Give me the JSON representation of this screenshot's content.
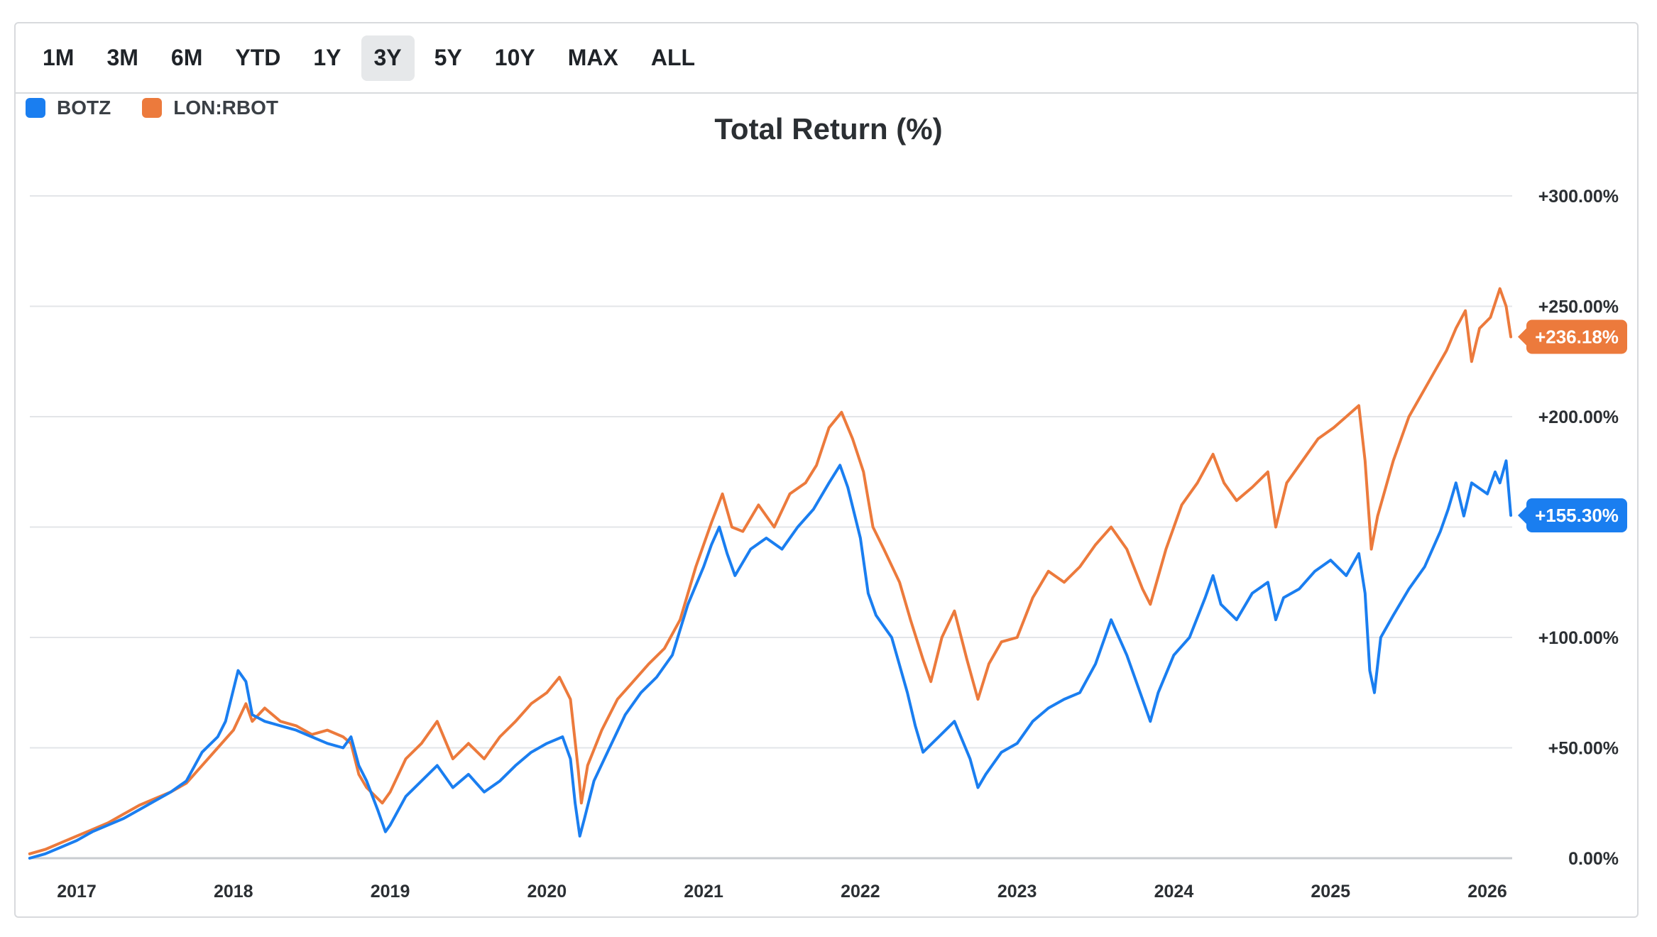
{
  "range_buttons": [
    {
      "label": "1M",
      "active": false
    },
    {
      "label": "3M",
      "active": false
    },
    {
      "label": "6M",
      "active": false
    },
    {
      "label": "YTD",
      "active": false
    },
    {
      "label": "1Y",
      "active": false
    },
    {
      "label": "3Y",
      "active": true
    },
    {
      "label": "5Y",
      "active": false
    },
    {
      "label": "10Y",
      "active": false
    },
    {
      "label": "MAX",
      "active": false
    },
    {
      "label": "ALL",
      "active": false
    }
  ],
  "colors": {
    "botz": "#1a7ef0",
    "rbot": "#ec7a3c",
    "grid": "#e3e5e8",
    "baseline": "#c9ccd0"
  },
  "chart_data": {
    "type": "line",
    "title": "Total Return (%)",
    "xlabel": "",
    "ylabel": "",
    "x_range": [
      2016.7,
      2026.2
    ],
    "ylim": [
      -3,
      300
    ],
    "y_ticks": [
      0,
      50,
      100,
      150,
      200,
      250,
      300
    ],
    "y_tick_labels": [
      "0.00%",
      "+50.00%",
      "+100.00%",
      "",
      "+200.00%",
      "+250.00%",
      "+300.00%"
    ],
    "x_ticks": [
      2017,
      2018,
      2019,
      2020,
      2021,
      2022,
      2023,
      2024,
      2025,
      2026
    ],
    "x_tick_labels": [
      "2017",
      "2018",
      "2019",
      "2020",
      "2021",
      "2022",
      "2023",
      "2024",
      "2025",
      "2026"
    ],
    "legend_position": "top-left",
    "series": [
      {
        "name": "BOTZ",
        "last_value_label": "+155.30%",
        "points": [
          [
            2016.7,
            0
          ],
          [
            2016.8,
            2
          ],
          [
            2016.9,
            5
          ],
          [
            2017.0,
            8
          ],
          [
            2017.1,
            12
          ],
          [
            2017.2,
            15
          ],
          [
            2017.3,
            18
          ],
          [
            2017.4,
            22
          ],
          [
            2017.5,
            26
          ],
          [
            2017.6,
            30
          ],
          [
            2017.7,
            35
          ],
          [
            2017.8,
            48
          ],
          [
            2017.9,
            55
          ],
          [
            2017.95,
            62
          ],
          [
            2018.03,
            85
          ],
          [
            2018.08,
            80
          ],
          [
            2018.12,
            65
          ],
          [
            2018.2,
            62
          ],
          [
            2018.3,
            60
          ],
          [
            2018.4,
            58
          ],
          [
            2018.5,
            55
          ],
          [
            2018.6,
            52
          ],
          [
            2018.7,
            50
          ],
          [
            2018.75,
            55
          ],
          [
            2018.8,
            42
          ],
          [
            2018.85,
            35
          ],
          [
            2018.92,
            22
          ],
          [
            2018.97,
            12
          ],
          [
            2019.0,
            15
          ],
          [
            2019.1,
            28
          ],
          [
            2019.2,
            35
          ],
          [
            2019.3,
            42
          ],
          [
            2019.4,
            32
          ],
          [
            2019.5,
            38
          ],
          [
            2019.6,
            30
          ],
          [
            2019.7,
            35
          ],
          [
            2019.8,
            42
          ],
          [
            2019.9,
            48
          ],
          [
            2020.0,
            52
          ],
          [
            2020.1,
            55
          ],
          [
            2020.15,
            45
          ],
          [
            2020.18,
            25
          ],
          [
            2020.21,
            10
          ],
          [
            2020.24,
            18
          ],
          [
            2020.3,
            35
          ],
          [
            2020.4,
            50
          ],
          [
            2020.5,
            65
          ],
          [
            2020.6,
            75
          ],
          [
            2020.7,
            82
          ],
          [
            2020.8,
            92
          ],
          [
            2020.9,
            115
          ],
          [
            2021.0,
            132
          ],
          [
            2021.05,
            142
          ],
          [
            2021.1,
            150
          ],
          [
            2021.15,
            138
          ],
          [
            2021.2,
            128
          ],
          [
            2021.3,
            140
          ],
          [
            2021.4,
            145
          ],
          [
            2021.5,
            140
          ],
          [
            2021.6,
            150
          ],
          [
            2021.7,
            158
          ],
          [
            2021.8,
            170
          ],
          [
            2021.87,
            178
          ],
          [
            2021.92,
            168
          ],
          [
            2022.0,
            145
          ],
          [
            2022.05,
            120
          ],
          [
            2022.1,
            110
          ],
          [
            2022.2,
            100
          ],
          [
            2022.3,
            75
          ],
          [
            2022.35,
            60
          ],
          [
            2022.4,
            48
          ],
          [
            2022.5,
            55
          ],
          [
            2022.6,
            62
          ],
          [
            2022.7,
            45
          ],
          [
            2022.75,
            32
          ],
          [
            2022.8,
            38
          ],
          [
            2022.9,
            48
          ],
          [
            2023.0,
            52
          ],
          [
            2023.1,
            62
          ],
          [
            2023.2,
            68
          ],
          [
            2023.3,
            72
          ],
          [
            2023.4,
            75
          ],
          [
            2023.5,
            88
          ],
          [
            2023.6,
            108
          ],
          [
            2023.7,
            92
          ],
          [
            2023.8,
            72
          ],
          [
            2023.85,
            62
          ],
          [
            2023.9,
            75
          ],
          [
            2024.0,
            92
          ],
          [
            2024.1,
            100
          ],
          [
            2024.2,
            118
          ],
          [
            2024.25,
            128
          ],
          [
            2024.3,
            115
          ],
          [
            2024.4,
            108
          ],
          [
            2024.5,
            120
          ],
          [
            2024.6,
            125
          ],
          [
            2024.65,
            108
          ],
          [
            2024.7,
            118
          ],
          [
            2024.8,
            122
          ],
          [
            2024.9,
            130
          ],
          [
            2025.0,
            135
          ],
          [
            2025.1,
            128
          ],
          [
            2025.18,
            138
          ],
          [
            2025.22,
            120
          ],
          [
            2025.25,
            85
          ],
          [
            2025.28,
            75
          ],
          [
            2025.32,
            100
          ],
          [
            2025.4,
            110
          ],
          [
            2025.5,
            122
          ],
          [
            2025.6,
            132
          ],
          [
            2025.7,
            148
          ],
          [
            2025.75,
            158
          ],
          [
            2025.8,
            170
          ],
          [
            2025.85,
            155
          ],
          [
            2025.9,
            170
          ],
          [
            2026.0,
            165
          ],
          [
            2026.05,
            175
          ],
          [
            2026.08,
            170
          ],
          [
            2026.12,
            180
          ],
          [
            2026.15,
            155.3
          ]
        ]
      },
      {
        "name": "LON:RBOT",
        "last_value_label": "+236.18%",
        "points": [
          [
            2016.7,
            2
          ],
          [
            2016.8,
            4
          ],
          [
            2016.9,
            7
          ],
          [
            2017.0,
            10
          ],
          [
            2017.1,
            13
          ],
          [
            2017.2,
            16
          ],
          [
            2017.3,
            20
          ],
          [
            2017.4,
            24
          ],
          [
            2017.5,
            27
          ],
          [
            2017.6,
            30
          ],
          [
            2017.7,
            34
          ],
          [
            2017.8,
            42
          ],
          [
            2017.9,
            50
          ],
          [
            2018.0,
            58
          ],
          [
            2018.08,
            70
          ],
          [
            2018.12,
            62
          ],
          [
            2018.2,
            68
          ],
          [
            2018.3,
            62
          ],
          [
            2018.4,
            60
          ],
          [
            2018.5,
            56
          ],
          [
            2018.6,
            58
          ],
          [
            2018.7,
            55
          ],
          [
            2018.75,
            52
          ],
          [
            2018.8,
            38
          ],
          [
            2018.85,
            32
          ],
          [
            2018.95,
            25
          ],
          [
            2019.0,
            30
          ],
          [
            2019.1,
            45
          ],
          [
            2019.2,
            52
          ],
          [
            2019.3,
            62
          ],
          [
            2019.4,
            45
          ],
          [
            2019.5,
            52
          ],
          [
            2019.6,
            45
          ],
          [
            2019.7,
            55
          ],
          [
            2019.8,
            62
          ],
          [
            2019.9,
            70
          ],
          [
            2020.0,
            75
          ],
          [
            2020.08,
            82
          ],
          [
            2020.15,
            72
          ],
          [
            2020.2,
            40
          ],
          [
            2020.22,
            25
          ],
          [
            2020.26,
            42
          ],
          [
            2020.35,
            58
          ],
          [
            2020.45,
            72
          ],
          [
            2020.55,
            80
          ],
          [
            2020.65,
            88
          ],
          [
            2020.75,
            95
          ],
          [
            2020.85,
            108
          ],
          [
            2020.95,
            132
          ],
          [
            2021.05,
            152
          ],
          [
            2021.12,
            165
          ],
          [
            2021.18,
            150
          ],
          [
            2021.25,
            148
          ],
          [
            2021.35,
            160
          ],
          [
            2021.45,
            150
          ],
          [
            2021.55,
            165
          ],
          [
            2021.65,
            170
          ],
          [
            2021.72,
            178
          ],
          [
            2021.8,
            195
          ],
          [
            2021.88,
            202
          ],
          [
            2021.95,
            190
          ],
          [
            2022.02,
            175
          ],
          [
            2022.08,
            150
          ],
          [
            2022.15,
            140
          ],
          [
            2022.25,
            125
          ],
          [
            2022.32,
            108
          ],
          [
            2022.4,
            90
          ],
          [
            2022.45,
            80
          ],
          [
            2022.52,
            100
          ],
          [
            2022.6,
            112
          ],
          [
            2022.68,
            90
          ],
          [
            2022.75,
            72
          ],
          [
            2022.82,
            88
          ],
          [
            2022.9,
            98
          ],
          [
            2023.0,
            100
          ],
          [
            2023.1,
            118
          ],
          [
            2023.2,
            130
          ],
          [
            2023.3,
            125
          ],
          [
            2023.4,
            132
          ],
          [
            2023.5,
            142
          ],
          [
            2023.6,
            150
          ],
          [
            2023.7,
            140
          ],
          [
            2023.8,
            122
          ],
          [
            2023.85,
            115
          ],
          [
            2023.95,
            140
          ],
          [
            2024.05,
            160
          ],
          [
            2024.15,
            170
          ],
          [
            2024.25,
            183
          ],
          [
            2024.32,
            170
          ],
          [
            2024.4,
            162
          ],
          [
            2024.5,
            168
          ],
          [
            2024.6,
            175
          ],
          [
            2024.65,
            150
          ],
          [
            2024.72,
            170
          ],
          [
            2024.82,
            180
          ],
          [
            2024.92,
            190
          ],
          [
            2025.02,
            195
          ],
          [
            2025.1,
            200
          ],
          [
            2025.18,
            205
          ],
          [
            2025.22,
            180
          ],
          [
            2025.26,
            140
          ],
          [
            2025.3,
            155
          ],
          [
            2025.4,
            180
          ],
          [
            2025.5,
            200
          ],
          [
            2025.58,
            210
          ],
          [
            2025.66,
            220
          ],
          [
            2025.74,
            230
          ],
          [
            2025.8,
            240
          ],
          [
            2025.86,
            248
          ],
          [
            2025.9,
            225
          ],
          [
            2025.95,
            240
          ],
          [
            2026.02,
            245
          ],
          [
            2026.08,
            258
          ],
          [
            2026.12,
            250
          ],
          [
            2026.15,
            236.18
          ]
        ]
      }
    ]
  }
}
